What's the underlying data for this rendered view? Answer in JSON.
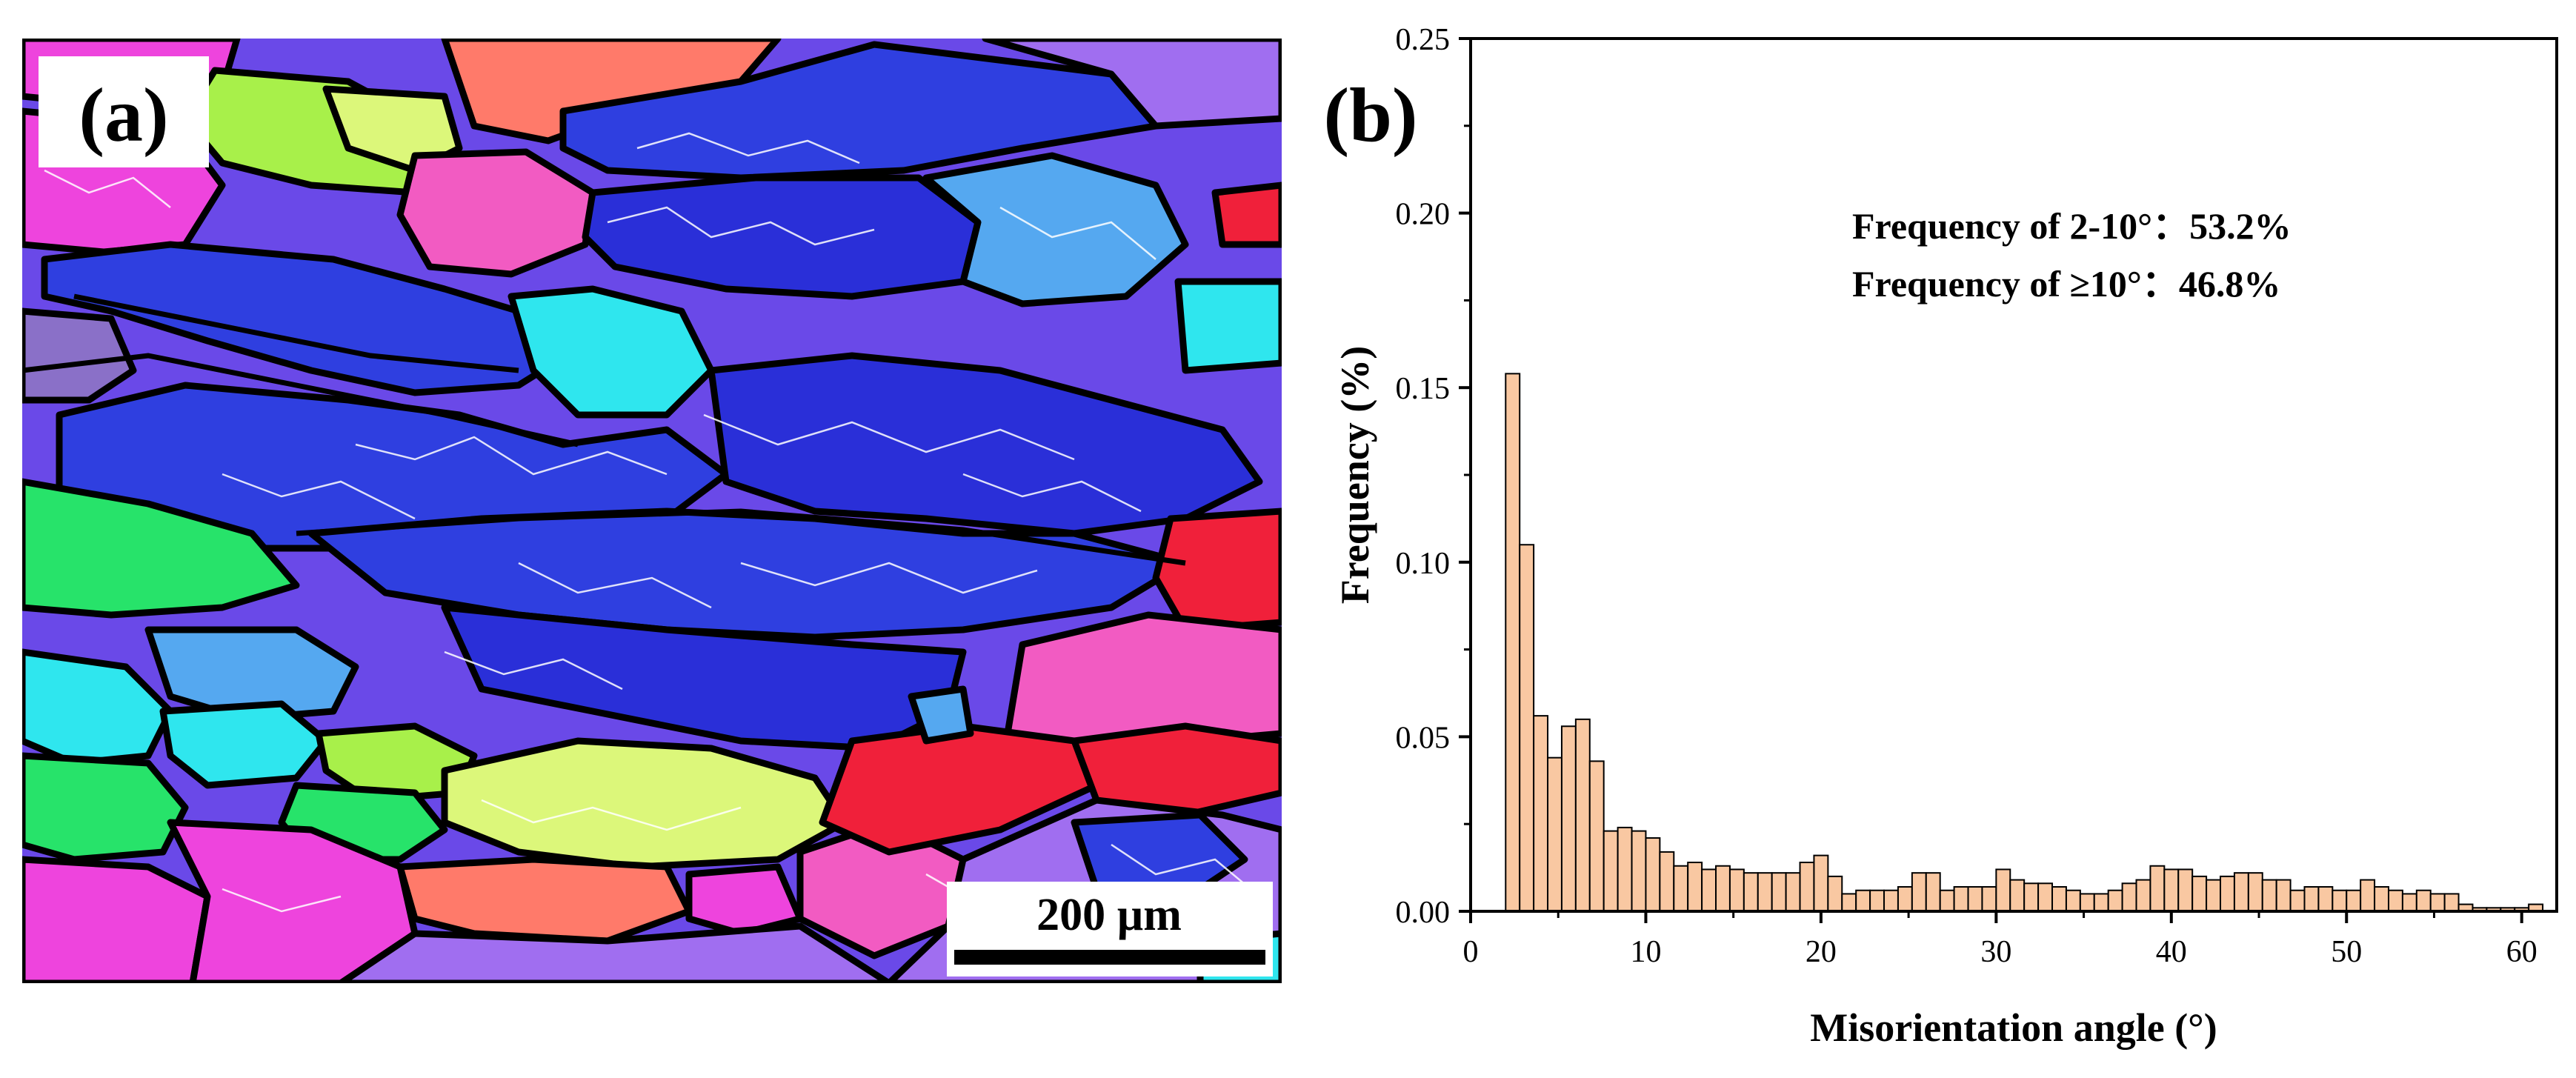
{
  "panel_a": {
    "label": "(a)",
    "scale_bar_text": "200 µm",
    "colors": {
      "blue": "#2f3fe0",
      "deep_blue": "#2a2fd8",
      "violet": "#6a49e8",
      "magenta": "#ee44dd",
      "pink": "#f25bc2",
      "red": "#f0203a",
      "lime": "#a8f04a",
      "yellow_green": "#dcf77a",
      "green": "#27e36a",
      "cyan": "#2fe6ee",
      "sky": "#55a8f0",
      "light_violet": "#a06ef0",
      "salmon": "#ff7a6a",
      "purple_gray": "#8a70c8"
    }
  },
  "panel_b": {
    "label": "(b)",
    "annotations": [
      "Frequency of 2-10°：53.2%",
      "Frequency of ≥10°：46.8%"
    ],
    "bar_color": "#f9c8a2"
  },
  "chart_data": {
    "type": "bar",
    "title": "",
    "xlabel": "Misorientation angle (°)",
    "ylabel": "Frequency (%)",
    "xlim": [
      0,
      62
    ],
    "ylim": [
      0,
      0.25
    ],
    "xticks": [
      "0",
      "10",
      "20",
      "30",
      "40",
      "50",
      "60"
    ],
    "yticks": [
      "0.00",
      "0.05",
      "0.10",
      "0.15",
      "0.20",
      "0.25"
    ],
    "bin_width": 0.8,
    "x": [
      2.4,
      3.2,
      4.0,
      4.8,
      5.6,
      6.4,
      7.2,
      8.0,
      8.8,
      9.6,
      10.4,
      11.2,
      12.0,
      12.8,
      13.6,
      14.4,
      15.2,
      16.0,
      16.8,
      17.6,
      18.4,
      19.2,
      20.0,
      20.8,
      21.6,
      22.4,
      23.2,
      24.0,
      24.8,
      25.6,
      26.4,
      27.2,
      28.0,
      28.8,
      29.6,
      30.4,
      31.2,
      32.0,
      32.8,
      33.6,
      34.4,
      35.2,
      36.0,
      36.8,
      37.6,
      38.4,
      39.2,
      40.0,
      40.8,
      41.6,
      42.4,
      43.2,
      44.0,
      44.8,
      45.6,
      46.4,
      47.2,
      48.0,
      48.8,
      49.6,
      50.4,
      51.2,
      52.0,
      52.8,
      53.6,
      54.4,
      55.2,
      56.0,
      56.8,
      57.6,
      58.4,
      59.2,
      60.0,
      60.8
    ],
    "values": [
      0.154,
      0.105,
      0.056,
      0.044,
      0.053,
      0.055,
      0.043,
      0.023,
      0.024,
      0.023,
      0.021,
      0.017,
      0.013,
      0.014,
      0.012,
      0.013,
      0.012,
      0.011,
      0.011,
      0.011,
      0.011,
      0.014,
      0.016,
      0.01,
      0.005,
      0.006,
      0.006,
      0.006,
      0.007,
      0.011,
      0.011,
      0.006,
      0.007,
      0.007,
      0.007,
      0.012,
      0.009,
      0.008,
      0.008,
      0.007,
      0.006,
      0.005,
      0.005,
      0.006,
      0.008,
      0.009,
      0.013,
      0.012,
      0.012,
      0.01,
      0.009,
      0.01,
      0.011,
      0.011,
      0.009,
      0.009,
      0.006,
      0.007,
      0.007,
      0.006,
      0.006,
      0.009,
      0.007,
      0.006,
      0.005,
      0.006,
      0.005,
      0.005,
      0.002,
      0.001,
      0.001,
      0.001,
      0.001,
      0.002
    ]
  }
}
